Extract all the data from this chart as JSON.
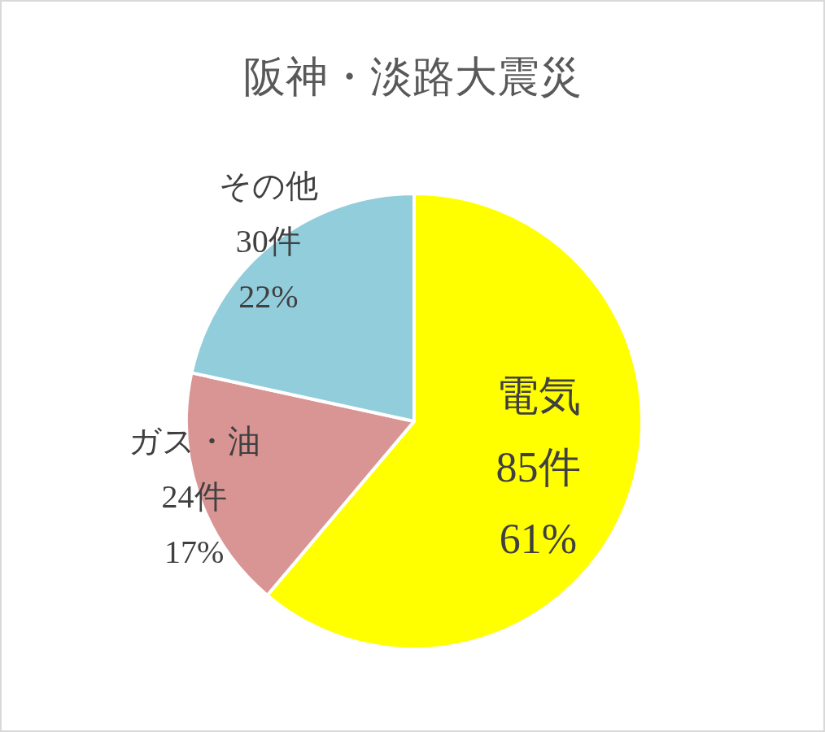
{
  "chart_data": {
    "type": "pie",
    "title": "阪神・淡路大震災",
    "categories": [
      "電気",
      "ガス・油",
      "その他"
    ],
    "values": [
      85,
      24,
      30
    ],
    "colors": [
      "#ffff00",
      "#d99594",
      "#92cddc"
    ],
    "value_labels": [
      "85件\n61%",
      "24件\n17%",
      "30件\n22%"
    ]
  }
}
